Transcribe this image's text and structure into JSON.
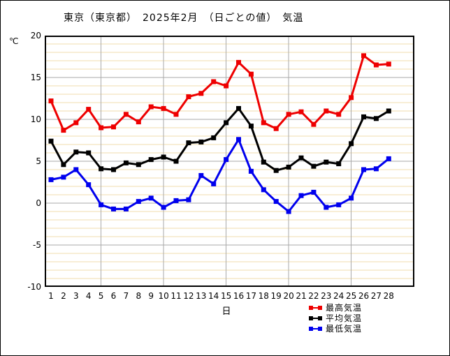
{
  "title": "東京（東京都）　2025年2月　（日ごとの値）　気温",
  "chart_data": {
    "type": "line",
    "title": "東京（東京都）　2025年2月　（日ごとの値）　気温",
    "xlabel": "日",
    "ylabel": "℃",
    "x": [
      1,
      2,
      3,
      4,
      5,
      6,
      7,
      8,
      9,
      10,
      11,
      12,
      13,
      14,
      15,
      16,
      17,
      18,
      19,
      20,
      21,
      22,
      23,
      24,
      25,
      26,
      27,
      28
    ],
    "xticks": [
      1,
      2,
      3,
      4,
      5,
      6,
      7,
      8,
      9,
      10,
      11,
      12,
      13,
      14,
      15,
      16,
      17,
      18,
      19,
      20,
      21,
      22,
      23,
      24,
      25,
      26,
      27,
      28
    ],
    "yticks": [
      20,
      15,
      10,
      5,
      0,
      -5,
      -10
    ],
    "ylim": [
      -10,
      20
    ],
    "grid": {
      "minor_step": 1,
      "major_step": 5,
      "minor_color": "#f2ddae",
      "major_color": "#a9a9a9",
      "vertical_major_days": [
        5,
        10,
        15,
        20,
        25
      ],
      "axis_color": "#000000"
    },
    "legend_position": "bottom-right",
    "series": [
      {
        "name": "最高気温",
        "color": "#ee0000",
        "values": [
          12.2,
          8.7,
          9.6,
          11.2,
          9.0,
          9.1,
          10.6,
          9.7,
          11.5,
          11.3,
          10.6,
          12.7,
          13.1,
          14.5,
          14.0,
          16.8,
          15.4,
          9.6,
          8.9,
          10.6,
          10.9,
          9.4,
          11.0,
          10.6,
          12.6,
          17.6,
          16.5,
          16.6
        ]
      },
      {
        "name": "平均気温",
        "color": "#000000",
        "values": [
          7.4,
          4.6,
          6.1,
          6.0,
          4.1,
          4.0,
          4.8,
          4.6,
          5.2,
          5.5,
          5.0,
          7.2,
          7.3,
          7.8,
          9.6,
          11.3,
          9.2,
          4.9,
          3.9,
          4.3,
          5.4,
          4.4,
          4.9,
          4.7,
          7.1,
          10.3,
          10.1,
          11.0
        ]
      },
      {
        "name": "最低気温",
        "color": "#0000ee",
        "values": [
          2.8,
          3.1,
          4.0,
          2.2,
          -0.2,
          -0.7,
          -0.7,
          0.2,
          0.6,
          -0.5,
          0.3,
          0.4,
          3.3,
          2.3,
          5.2,
          7.6,
          3.8,
          1.6,
          0.2,
          -1.0,
          0.9,
          1.3,
          -0.5,
          -0.2,
          0.6,
          4.0,
          4.1,
          5.3
        ]
      }
    ]
  }
}
